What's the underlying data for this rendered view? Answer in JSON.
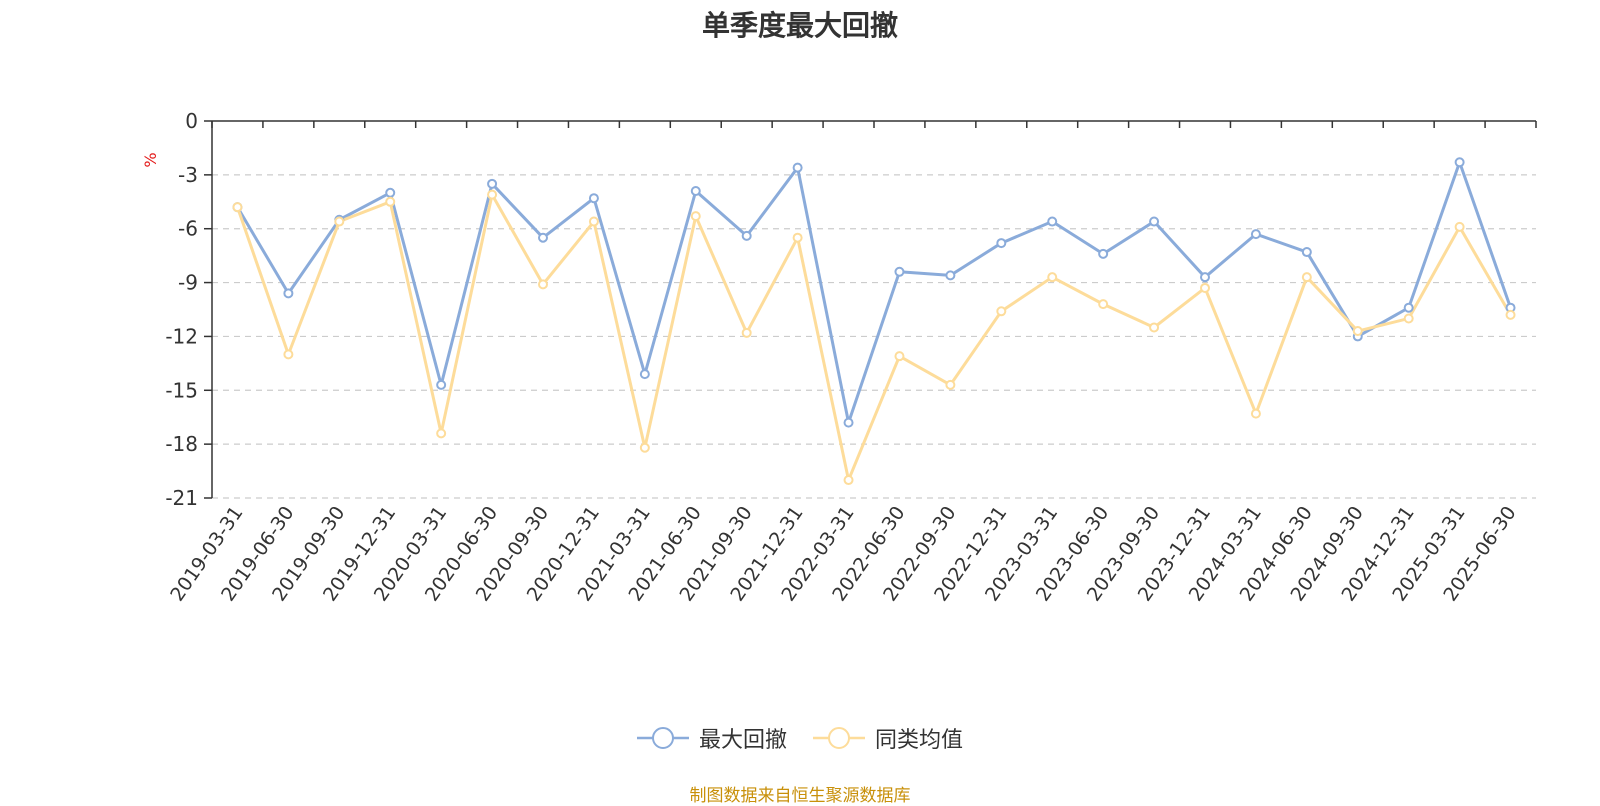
{
  "chart_data": {
    "type": "line",
    "title": "单季度最大回撤",
    "ylabel": "%",
    "ylim": [
      -21,
      0
    ],
    "yticks": [
      "0",
      "-3",
      "-6",
      "-9",
      "-12",
      "-15",
      "-18",
      "-21"
    ],
    "grid": true,
    "legend_position": "bottom",
    "categories": [
      "2019-03-31",
      "2019-06-30",
      "2019-09-30",
      "2019-12-31",
      "2020-03-31",
      "2020-06-30",
      "2020-09-30",
      "2020-12-31",
      "2021-03-31",
      "2021-06-30",
      "2021-09-30",
      "2021-12-31",
      "2022-03-31",
      "2022-06-30",
      "2022-09-30",
      "2022-12-31",
      "2023-03-31",
      "2023-06-30",
      "2023-09-30",
      "2023-12-31",
      "2024-03-31",
      "2024-06-30",
      "2024-09-30",
      "2024-12-31",
      "2025-03-31",
      "2025-06-30"
    ],
    "series": [
      {
        "name": "最大回撤",
        "color": "#8aabda",
        "values": [
          -4.8,
          -9.6,
          -5.5,
          -4.0,
          -14.7,
          -3.5,
          -6.5,
          -4.3,
          -14.1,
          -3.9,
          -6.4,
          -2.6,
          -16.8,
          -8.4,
          -8.6,
          -6.8,
          -5.6,
          -7.4,
          -5.6,
          -8.7,
          -6.3,
          -7.3,
          -12.0,
          -10.4,
          -2.3,
          -10.4
        ]
      },
      {
        "name": "同类均值",
        "color": "#fddc9a",
        "values": [
          -4.8,
          -13.0,
          -5.6,
          -4.5,
          -17.4,
          -4.1,
          -9.1,
          -5.6,
          -18.2,
          -5.3,
          -11.8,
          -6.5,
          -20.0,
          -13.1,
          -14.7,
          -10.6,
          -8.7,
          -10.2,
          -11.5,
          -9.3,
          -16.3,
          -8.7,
          -11.7,
          -11.0,
          -5.9,
          -10.8
        ]
      }
    ]
  },
  "footer": {
    "source": "制图数据来自恒生聚源数据库"
  }
}
